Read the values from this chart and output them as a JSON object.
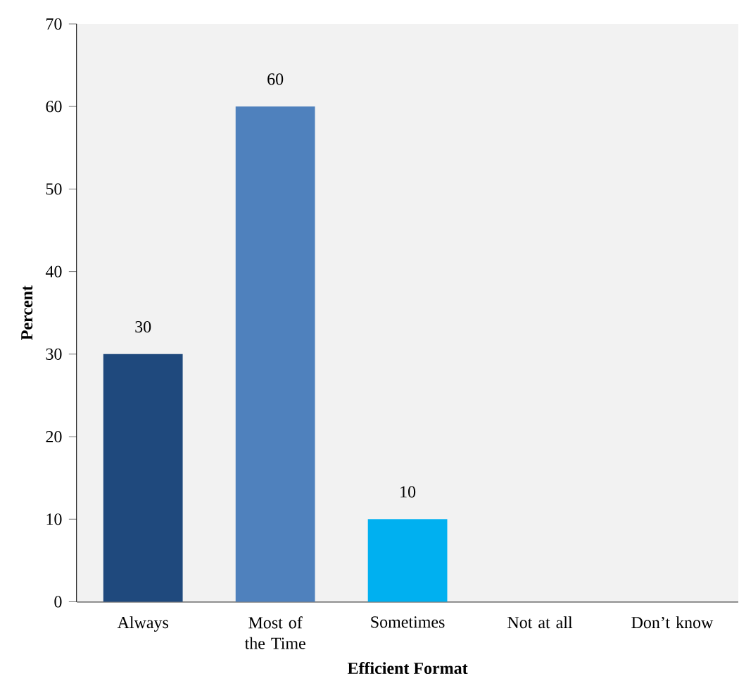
{
  "chart_data": {
    "type": "bar",
    "xlabel": "Efficient Format",
    "ylabel": "Percent",
    "categories": [
      "Always",
      "Most of the Time",
      "Sometimes",
      "Not at all",
      "Don’t know"
    ],
    "values": [
      30,
      60,
      10,
      0,
      0
    ],
    "colors": [
      "#1f497d",
      "#4f81bd",
      "#00b0f0",
      "#4f81bd",
      "#4f81bd"
    ],
    "value_labels": [
      "30",
      "60",
      "10",
      null,
      null
    ],
    "ylim": [
      0,
      70
    ],
    "yticks": [
      0,
      10,
      20,
      30,
      40,
      50,
      60,
      70
    ],
    "grid": false
  }
}
